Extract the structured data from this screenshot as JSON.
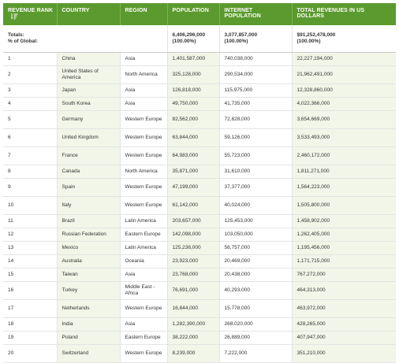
{
  "headers": {
    "rank": "Revenue Rank",
    "country": "Country",
    "region": "Region",
    "population": "Population",
    "internet": "Internet Population",
    "revenue": "Total Revenues in US Dollars"
  },
  "totals": {
    "label_line1": "Totals:",
    "label_line2": "% of Global:",
    "population": "6,406,296,000",
    "population_pct": "(100.00%)",
    "internet": "3,077,857,000",
    "internet_pct": "(100.00%)",
    "revenue": "$91,252,478,000",
    "revenue_pct": "(100.00%)"
  },
  "rows": [
    {
      "rank": "1",
      "country": "China",
      "region": "Asia",
      "population": "1,401,587,000",
      "internet": "740,038,000",
      "revenue": "22,227,194,000"
    },
    {
      "rank": "2",
      "country": "United States of America",
      "region": "North America",
      "population": "325,128,000",
      "internet": "290,534,000",
      "revenue": "21,962,491,000"
    },
    {
      "rank": "3",
      "country": "Japan",
      "region": "Asia",
      "population": "126,818,000",
      "internet": "115,975,000",
      "revenue": "12,328,860,000"
    },
    {
      "rank": "4",
      "country": "South Korea",
      "region": "Asia",
      "population": "49,750,000",
      "internet": "41,735,000",
      "revenue": "4,022,366,000"
    },
    {
      "rank": "5",
      "country": "Germany",
      "region": "Western Europe",
      "population": "82,562,000",
      "internet": "72,828,000",
      "revenue": "3,654,669,000"
    },
    {
      "rank": "6",
      "country": "United Kingdom",
      "region": "Western Europe",
      "population": "63,844,000",
      "internet": "59,126,000",
      "revenue": "3,533,493,000"
    },
    {
      "rank": "7",
      "country": "France",
      "region": "Western Europe",
      "population": "64,983,000",
      "internet": "55,723,000",
      "revenue": "2,460,172,000"
    },
    {
      "rank": "8",
      "country": "Canada",
      "region": "North America",
      "population": "35,871,000",
      "internet": "31,610,000",
      "revenue": "1,811,271,000"
    },
    {
      "rank": "9",
      "country": "Spain",
      "region": "Western Europe",
      "population": "47,199,000",
      "internet": "37,377,000",
      "revenue": "1,564,223,000"
    },
    {
      "rank": "10",
      "country": "Italy",
      "region": "Western Europe",
      "population": "61,142,000",
      "internet": "40,024,000",
      "revenue": "1,505,800,000"
    },
    {
      "rank": "11",
      "country": "Brazil",
      "region": "Latin America",
      "population": "203,657,000",
      "internet": "125,453,000",
      "revenue": "1,458,902,000"
    },
    {
      "rank": "12",
      "country": "Russian Federation",
      "region": "Eastern Europe",
      "population": "142,098,000",
      "internet": "103,050,000",
      "revenue": "1,262,405,000"
    },
    {
      "rank": "13",
      "country": "Mexico",
      "region": "Latin America",
      "population": "125,236,000",
      "internet": "56,757,000",
      "revenue": "1,195,456,000"
    },
    {
      "rank": "14",
      "country": "Australia",
      "region": "Oceania",
      "population": "23,923,000",
      "internet": "20,469,000",
      "revenue": "1,171,715,000"
    },
    {
      "rank": "15",
      "country": "Taiwan",
      "region": "Asia",
      "population": "23,768,000",
      "internet": "20,438,000",
      "revenue": "767,272,000"
    },
    {
      "rank": "16",
      "country": "Turkey",
      "region": "Middle East - Africa",
      "population": "76,691,000",
      "internet": "40,293,000",
      "revenue": "464,313,000"
    },
    {
      "rank": "17",
      "country": "Netherlands",
      "region": "Western Europe",
      "population": "16,844,000",
      "internet": "15,778,000",
      "revenue": "463,972,000"
    },
    {
      "rank": "18",
      "country": "India",
      "region": "Asia",
      "population": "1,282,390,000",
      "internet": "268,020,000",
      "revenue": "428,265,000"
    },
    {
      "rank": "19",
      "country": "Poland",
      "region": "Eastern Europe",
      "population": "38,222,000",
      "internet": "26,889,000",
      "revenue": "407,947,000"
    },
    {
      "rank": "20",
      "country": "Switzerland",
      "region": "Western Europe",
      "population": "8,239,000",
      "internet": "7,222,000",
      "revenue": "351,210,000"
    }
  ],
  "icons": {
    "sort": "sort-descending-icon"
  },
  "colors": {
    "header_bg": "#5b9a2e",
    "stripe": "#f1f6e8"
  }
}
